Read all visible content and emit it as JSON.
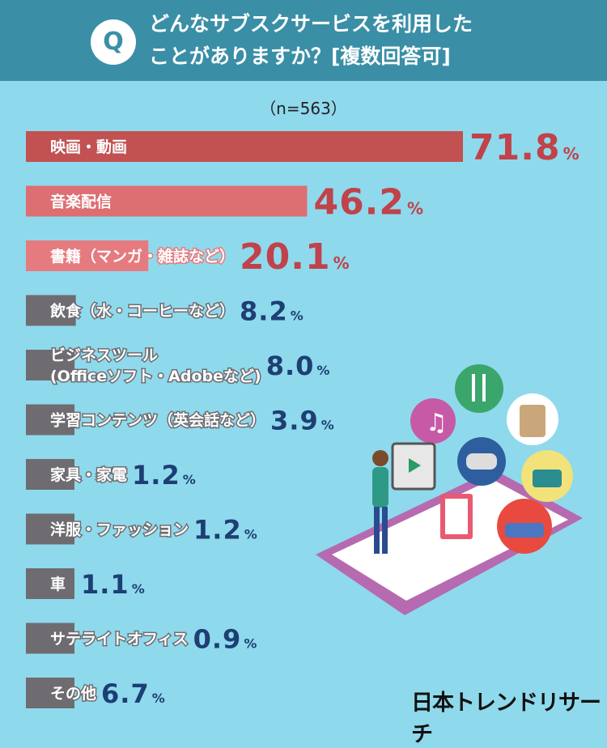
{
  "header": {
    "badge": "Q",
    "question_line1": "どんなサブスクサービスを利用した",
    "question_line2": "ことがありますか？[複数回答可]"
  },
  "sample_note": "（n=563）",
  "brand": "日本トレンドリサーチ",
  "colors": {
    "header_bg": "#3a8fa6",
    "page_bg": "#8fd9ec",
    "bar_top1": "#c25152",
    "bar_top2": "#dd6e72",
    "bar_top3": "#e57b7f",
    "bar_gray": "#6e6c70",
    "value_red": "#c0424a",
    "value_blue": "#1d3f73"
  },
  "chart_data": {
    "type": "bar",
    "orientation": "horizontal",
    "unit": "%",
    "categories": [
      "映画・動画",
      "音楽配信",
      "書籍（マンガ・雑誌など）",
      "飲食（水・コーヒーなど）",
      "ビジネスツール\n(Officeソフト・Adobeなど)",
      "学習コンテンツ（英会話など）",
      "家具・家電",
      "洋服・ファッション",
      "車",
      "サテライトオフィス",
      "その他"
    ],
    "values": [
      71.8,
      46.2,
      20.1,
      8.2,
      8.0,
      3.9,
      1.2,
      1.2,
      1.1,
      0.9,
      6.7
    ],
    "value_labels": [
      "71.8",
      "46.2",
      "20.1",
      "8.2",
      "8.0",
      "3.9",
      "1.2",
      "1.2",
      "1.1",
      "0.9",
      "6.7"
    ],
    "xlim": [
      0,
      71.8
    ]
  }
}
